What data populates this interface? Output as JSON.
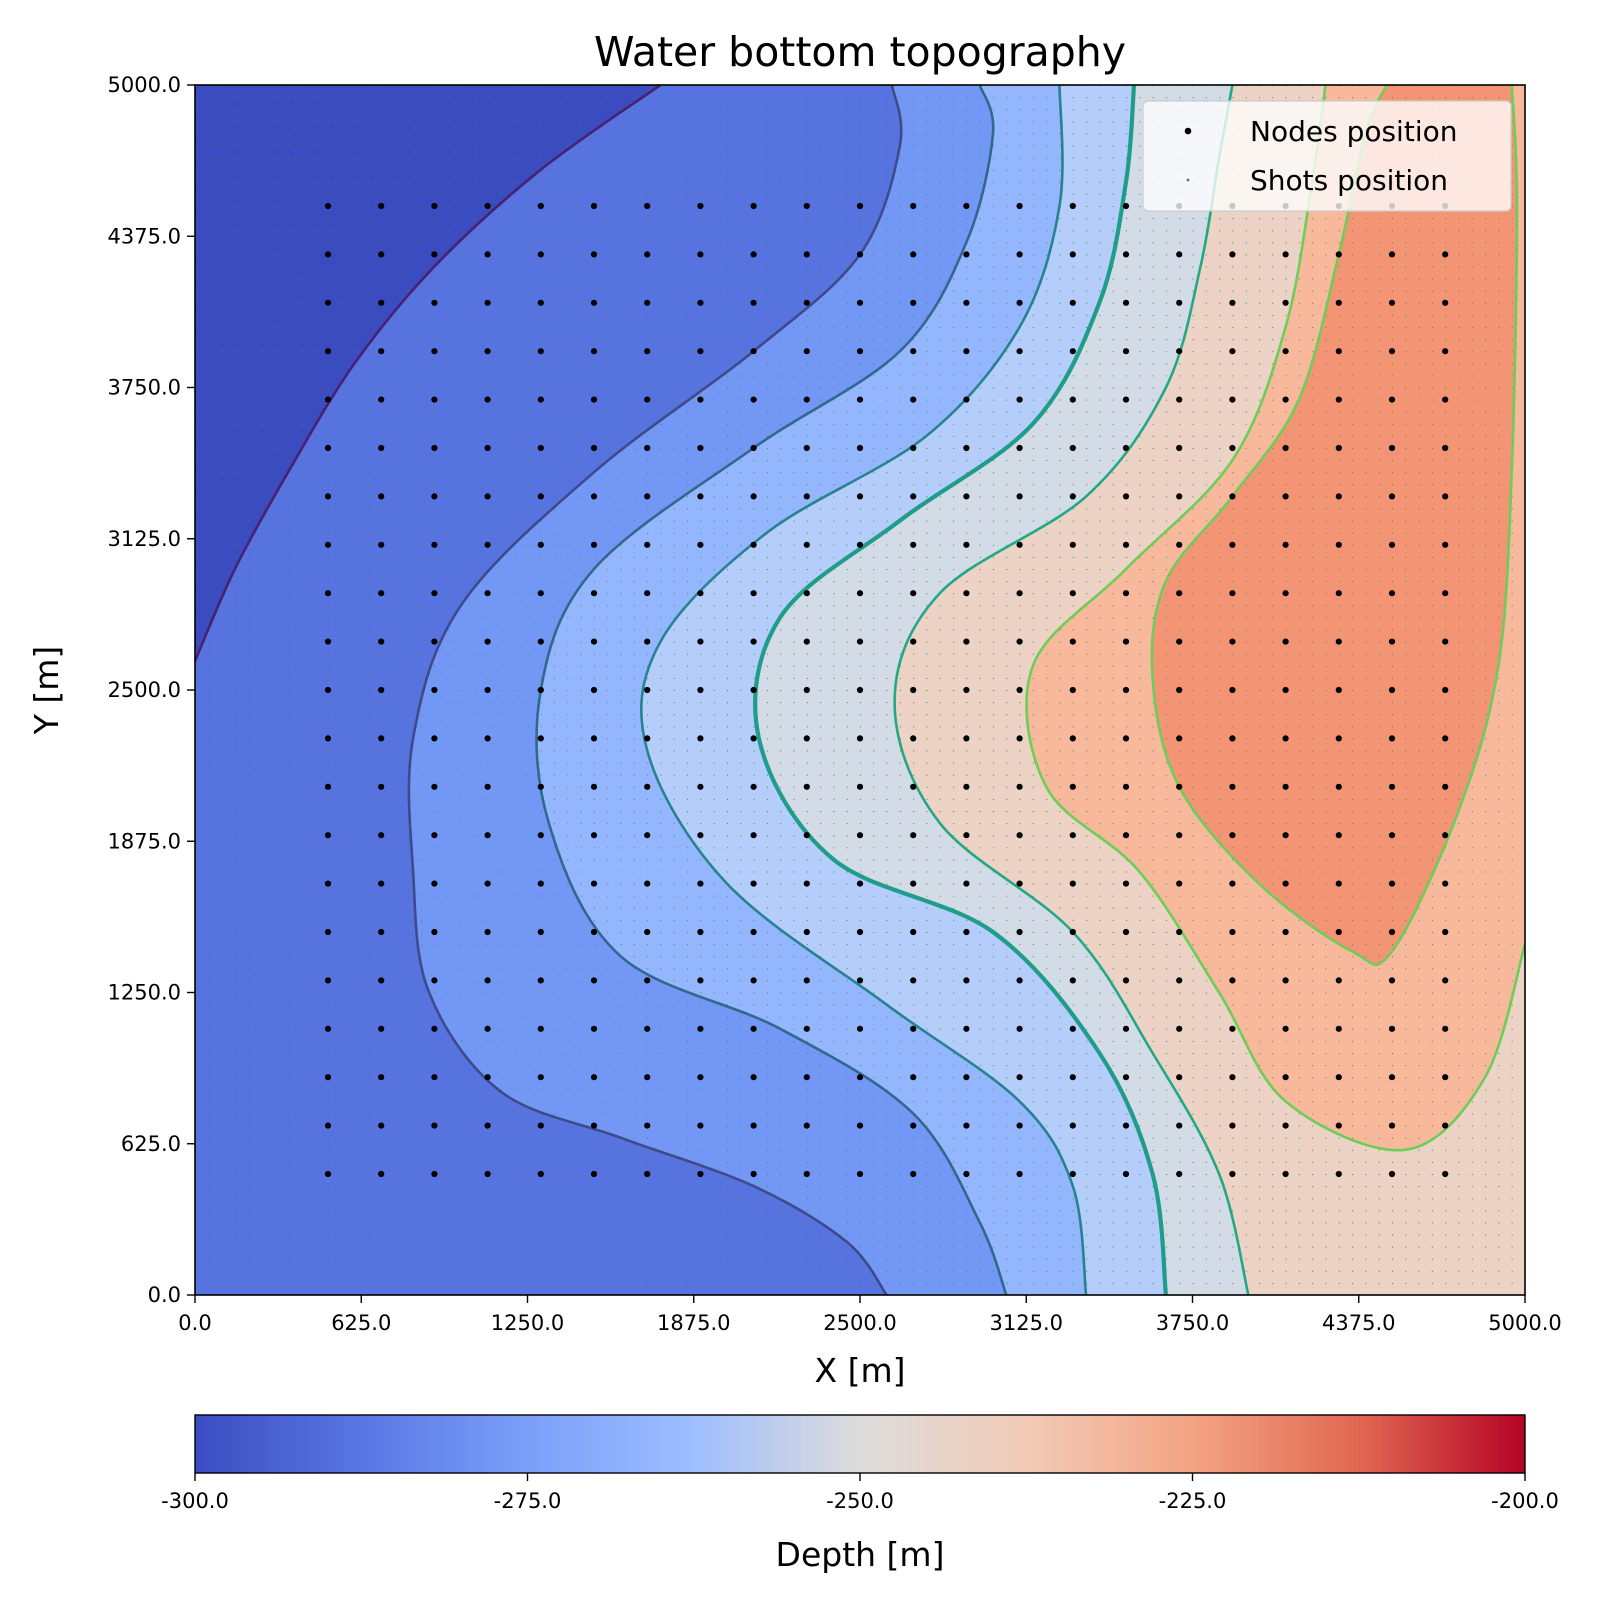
{
  "chart_data": {
    "type": "contour",
    "title": "Water bottom topography",
    "xlabel": "X [m]",
    "ylabel": "Y [m]",
    "xlim": [
      0,
      5000
    ],
    "ylim": [
      0,
      5000
    ],
    "xticks": [
      "0.0",
      "625.0",
      "1250.0",
      "1875.0",
      "2500.0",
      "3125.0",
      "3750.0",
      "4375.0",
      "5000.0"
    ],
    "yticks": [
      "0.0",
      "625.0",
      "1250.0",
      "1875.0",
      "2500.0",
      "3125.0",
      "3750.0",
      "4375.0",
      "5000.0"
    ],
    "colorbar": {
      "label": "Depth [m]",
      "range": [
        -300,
        -200
      ],
      "ticks": [
        "-300.0",
        "-275.0",
        "-250.0",
        "-225.0",
        "-200.0"
      ],
      "colormap": "coolwarm"
    },
    "legend": {
      "placement": "top-right",
      "entries": [
        {
          "label": "Nodes position",
          "marker": "black-dot"
        },
        {
          "label": "Shots position",
          "marker": "green-dot"
        }
      ]
    },
    "levels": [
      -290,
      -280,
      -270,
      -260,
      -250,
      -240,
      -230,
      -220,
      -210
    ],
    "level_colors": [
      "#3a4cc0",
      "#5673e0",
      "#7397f5",
      "#94b6ff",
      "#b5cdfa",
      "#d3dbe7",
      "#ecd3c5",
      "#f7b89c",
      "#f39475",
      "#e1654f",
      "#b40426"
    ],
    "contour_line_colors": [
      "#482173",
      "#3f4a8a",
      "#31688e",
      "#26838f",
      "#1f9d8a",
      "#24a884",
      "#6cce59",
      "#6ccd5a",
      "#c4d92b"
    ],
    "contours": [
      {
        "level": -290,
        "points": [
          [
            0,
            2620
          ],
          [
            150,
            3000
          ],
          [
            350,
            3400
          ],
          [
            600,
            3850
          ],
          [
            900,
            4250
          ],
          [
            1300,
            4650
          ],
          [
            1750,
            5000
          ]
        ]
      },
      {
        "level": -280,
        "points": [
          [
            2600,
            0
          ],
          [
            2450,
            220
          ],
          [
            2100,
            450
          ],
          [
            1600,
            650
          ],
          [
            1150,
            840
          ],
          [
            880,
            1250
          ],
          [
            820,
            1750
          ],
          [
            820,
            2300
          ],
          [
            1000,
            2850
          ],
          [
            1500,
            3400
          ],
          [
            2100,
            3900
          ],
          [
            2500,
            4300
          ],
          [
            2650,
            4750
          ],
          [
            2620,
            5000
          ]
        ]
      },
      {
        "level": -270,
        "points": [
          [
            3050,
            0
          ],
          [
            2950,
            300
          ],
          [
            2700,
            750
          ],
          [
            2200,
            1100
          ],
          [
            1600,
            1400
          ],
          [
            1330,
            1950
          ],
          [
            1300,
            2500
          ],
          [
            1500,
            3000
          ],
          [
            2100,
            3500
          ],
          [
            2650,
            3900
          ],
          [
            2900,
            4350
          ],
          [
            3000,
            4800
          ],
          [
            2950,
            5000
          ]
        ]
      },
      {
        "level": -260,
        "points": [
          [
            3350,
            0
          ],
          [
            3300,
            450
          ],
          [
            3100,
            800
          ],
          [
            2600,
            1200
          ],
          [
            2000,
            1700
          ],
          [
            1700,
            2250
          ],
          [
            1750,
            2700
          ],
          [
            2150,
            3150
          ],
          [
            2750,
            3550
          ],
          [
            3100,
            4000
          ],
          [
            3250,
            4500
          ],
          [
            3250,
            5000
          ]
        ]
      },
      {
        "level": -250,
        "points": [
          [
            3650,
            0
          ],
          [
            3600,
            500
          ],
          [
            3400,
            1000
          ],
          [
            3000,
            1500
          ],
          [
            2400,
            1800
          ],
          [
            2120,
            2300
          ],
          [
            2200,
            2800
          ],
          [
            2650,
            3200
          ],
          [
            3150,
            3600
          ],
          [
            3400,
            4100
          ],
          [
            3500,
            4600
          ],
          [
            3530,
            5000
          ]
        ]
      },
      {
        "level": -240,
        "points": [
          [
            3960,
            0
          ],
          [
            3850,
            500
          ],
          [
            3600,
            1000
          ],
          [
            3300,
            1500
          ],
          [
            2800,
            1950
          ],
          [
            2630,
            2450
          ],
          [
            2800,
            2900
          ],
          [
            3350,
            3300
          ],
          [
            3650,
            3750
          ],
          [
            3780,
            4250
          ],
          [
            3850,
            4700
          ],
          [
            3900,
            5000
          ]
        ]
      },
      {
        "level": -230,
        "points": [
          [
            5000,
            1450
          ],
          [
            4850,
            900
          ],
          [
            4550,
            600
          ],
          [
            4100,
            800
          ],
          [
            3850,
            1250
          ],
          [
            3550,
            1750
          ],
          [
            3200,
            2100
          ],
          [
            3150,
            2600
          ],
          [
            3500,
            3000
          ],
          [
            3900,
            3450
          ],
          [
            4100,
            4000
          ],
          [
            4200,
            4600
          ],
          [
            4250,
            5000
          ]
        ]
      },
      {
        "level": -220,
        "points": [
          [
            4950,
            5000
          ],
          [
            4970,
            4500
          ],
          [
            4950,
            3400
          ],
          [
            4900,
            2600
          ],
          [
            4750,
            2000
          ],
          [
            4500,
            1420
          ],
          [
            4350,
            1420
          ],
          [
            4000,
            1700
          ],
          [
            3700,
            2100
          ],
          [
            3600,
            2550
          ],
          [
            3650,
            2950
          ],
          [
            3900,
            3300
          ],
          [
            4150,
            3700
          ],
          [
            4300,
            4300
          ],
          [
            4400,
            4800
          ],
          [
            4480,
            5000
          ]
        ]
      }
    ],
    "nodes": {
      "x": [
        500,
        700,
        900,
        1100,
        1300,
        1500,
        1700,
        1900,
        2100,
        2300,
        2500,
        2700,
        2900,
        3100,
        3300,
        3500,
        3700,
        3900,
        4100,
        4300,
        4500,
        4700
      ],
      "y": [
        500,
        700,
        900,
        1100,
        1300,
        1500,
        1700,
        1900,
        2100,
        2300,
        2500,
        2700,
        2900,
        3100,
        3300,
        3500,
        3700,
        3900,
        4100,
        4300,
        4500
      ]
    },
    "shots": {
      "x_start": 0,
      "x_end": 5000,
      "x_step": 50,
      "y_start": 0,
      "y_end": 5000,
      "y_step": 50
    }
  }
}
